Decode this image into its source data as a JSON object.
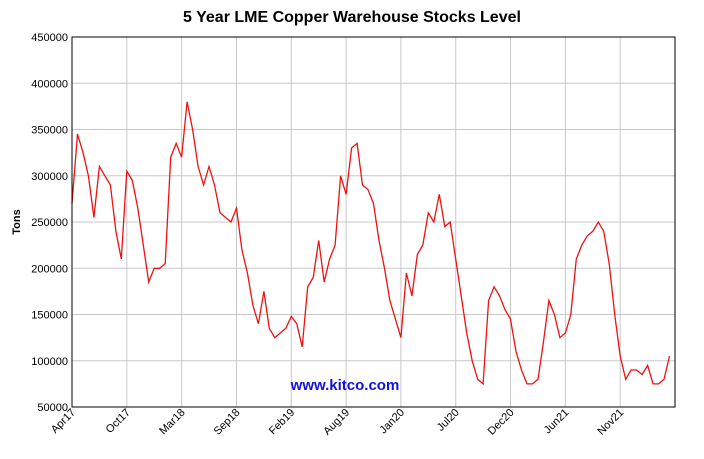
{
  "chart_data": {
    "type": "line",
    "title": "5 Year LME Copper Warehouse Stocks Level",
    "y_label": "Tons",
    "watermark": "www.kitco.com",
    "categories": [
      "Apr17",
      null,
      null,
      null,
      null,
      null,
      null,
      null,
      null,
      null,
      "Oct17",
      null,
      null,
      null,
      null,
      null,
      null,
      null,
      null,
      null,
      "Mar18",
      null,
      null,
      null,
      null,
      null,
      null,
      null,
      null,
      null,
      "Sep18",
      null,
      null,
      null,
      null,
      null,
      null,
      null,
      null,
      null,
      "Feb19",
      null,
      null,
      null,
      null,
      null,
      null,
      null,
      null,
      null,
      "Aug19",
      null,
      null,
      null,
      null,
      null,
      null,
      null,
      null,
      null,
      "Jan20",
      null,
      null,
      null,
      null,
      null,
      null,
      null,
      null,
      null,
      "Jul20",
      null,
      null,
      null,
      null,
      null,
      null,
      null,
      null,
      null,
      "Dec20",
      null,
      null,
      null,
      null,
      null,
      null,
      null,
      null,
      null,
      "Jun21",
      null,
      null,
      null,
      null,
      null,
      null,
      null,
      null,
      null,
      "Nov21",
      null,
      null,
      null,
      null,
      null,
      null,
      null,
      null,
      null
    ],
    "series": [
      {
        "color": "#ee1111",
        "values": [
          270000,
          345000,
          325000,
          300000,
          255000,
          310000,
          300000,
          290000,
          240000,
          210000,
          305000,
          295000,
          265000,
          225000,
          185000,
          200000,
          200000,
          205000,
          320000,
          335000,
          320000,
          380000,
          350000,
          310000,
          290000,
          310000,
          290000,
          260000,
          255000,
          250000,
          265000,
          220000,
          195000,
          160000,
          140000,
          175000,
          135000,
          125000,
          130000,
          135000,
          148000,
          140000,
          115000,
          180000,
          190000,
          230000,
          185000,
          210000,
          225000,
          300000,
          280000,
          330000,
          335000,
          290000,
          285000,
          270000,
          230000,
          200000,
          165000,
          145000,
          125000,
          195000,
          170000,
          215000,
          225000,
          260000,
          250000,
          280000,
          245000,
          250000,
          210000,
          170000,
          130000,
          100000,
          80000,
          75000,
          165000,
          180000,
          170000,
          155000,
          145000,
          110000,
          90000,
          75000,
          75000,
          80000,
          120000,
          165000,
          150000,
          125000,
          130000,
          150000,
          210000,
          225000,
          235000,
          240000,
          250000,
          240000,
          205000,
          150000,
          105000,
          80000,
          90000,
          90000,
          85000,
          95000,
          75000,
          75000,
          80000,
          105000
        ]
      }
    ],
    "ylim": [
      50000,
      450000
    ],
    "yticks": [
      50000,
      100000,
      150000,
      200000,
      250000,
      300000,
      350000,
      400000,
      450000
    ],
    "grid": true
  }
}
